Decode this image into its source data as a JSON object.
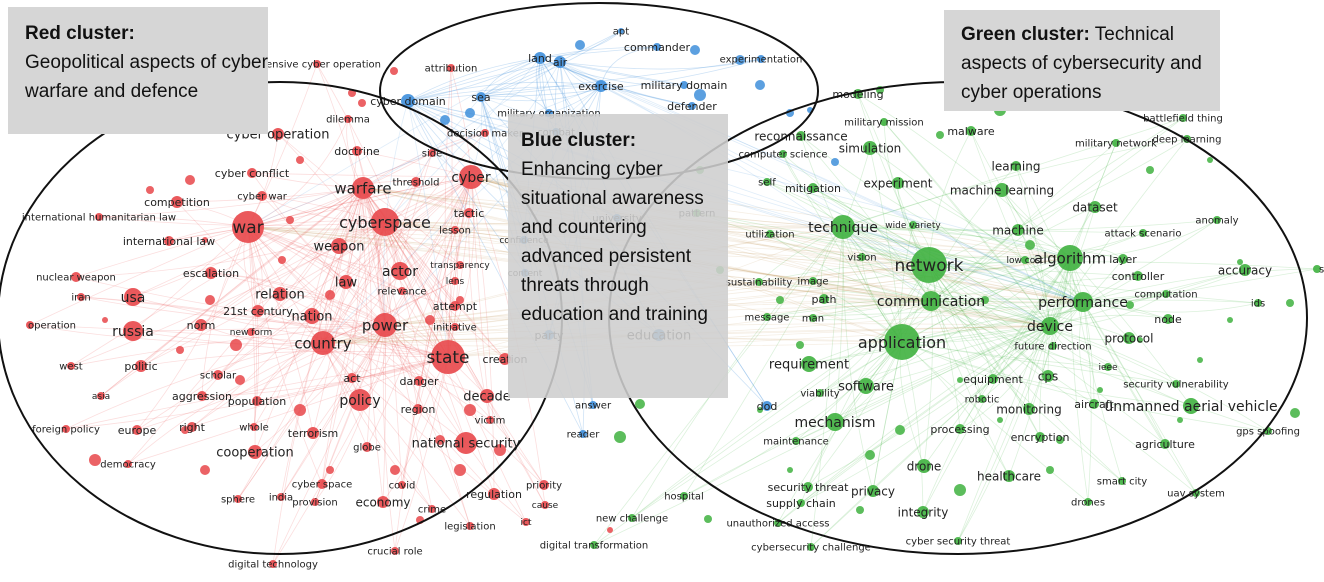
{
  "callouts": {
    "red": {
      "title": "Red cluster:",
      "text": "Geopolitical aspects of cyber warfare and defence"
    },
    "green": {
      "title": "Green cluster:",
      "text": "Technical aspects of cybersecurity and cyber operations"
    },
    "blue": {
      "title": "Blue cluster:",
      "text": "Enhancing cyber situational awareness and countering advanced persistent threats through education and training"
    }
  },
  "colors": {
    "red": "#e8474a",
    "green": "#3fb13f",
    "blue": "#3f8fdb",
    "neutral": "#c9a06a",
    "ring": "#111111"
  },
  "clusters": {
    "red": [
      "cyber operation",
      "doctrine",
      "cyber conflict",
      "cyber war",
      "warfare",
      "threshold",
      "cyber",
      "competition",
      "international humanitarian law",
      "war",
      "cyberspace",
      "tactic",
      "international law",
      "weapon",
      "lesson",
      "escalation",
      "actor",
      "transparency",
      "nuclear weapon",
      "law",
      "lens",
      "relevance",
      "usa",
      "iran",
      "relation",
      "attempt",
      "21st century",
      "nation",
      "norm",
      "new form",
      "power",
      "initiative",
      "russia",
      "country",
      "state",
      "creation",
      "politic",
      "act",
      "danger",
      "west",
      "scholar",
      "asia",
      "aggression",
      "population",
      "policy",
      "region",
      "decade",
      "foreign policy",
      "right",
      "whole",
      "europe",
      "terrorism",
      "victim",
      "globe",
      "national security",
      "cooperation",
      "democracy",
      "cyber space",
      "covid",
      "regulation",
      "priority",
      "sphere",
      "india",
      "provision",
      "economy",
      "crime",
      "cause",
      "legislation",
      "ict",
      "crucial role",
      "digital technology",
      "offensive cyber operation",
      "attribution",
      "dilemma",
      "side",
      "decision maker",
      "operation"
    ],
    "blue": [
      "apt",
      "commander",
      "land",
      "air",
      "experimentation",
      "exercise",
      "military domain",
      "sea",
      "cyber domain",
      "military organization",
      "defender",
      "combat",
      "education",
      "dod",
      "party",
      "answer",
      "reader",
      "university",
      "confidence",
      "content"
    ],
    "green": [
      "modeling",
      "military mission",
      "battlefield thing",
      "malware",
      "reconnaissance",
      "military network",
      "deep learning",
      "simulation",
      "computer science",
      "learning",
      "self",
      "mitigation",
      "experiment",
      "machine learning",
      "dataset",
      "technique",
      "pattern",
      "utilization",
      "wide variety",
      "machine",
      "attack scenario",
      "anomaly",
      "network",
      "algorithm",
      "vision",
      "low cost",
      "layer",
      "accuracy",
      "sustainability",
      "image",
      "controller",
      "path",
      "communication",
      "performance",
      "computation",
      "ids",
      "message",
      "man",
      "device",
      "node",
      "future direction",
      "protocol",
      "application",
      "requirement",
      "ieee",
      "equipment",
      "cps",
      "software",
      "viability",
      "robotic",
      "security vulnerability",
      "monitoring",
      "aircraft",
      "unmanned aerial vehicle",
      "mechanism",
      "processing",
      "encryption",
      "gps spoofing",
      "maintenance",
      "drone",
      "agriculture",
      "healthcare",
      "smart city",
      "security threat",
      "privacy",
      "drones",
      "supply chain",
      "uav system",
      "integrity",
      "hospital",
      "new challenge",
      "unauthorized access",
      "digital transformation",
      "cybersecurity challenge",
      "cyber security threat",
      "sup"
    ]
  }
}
